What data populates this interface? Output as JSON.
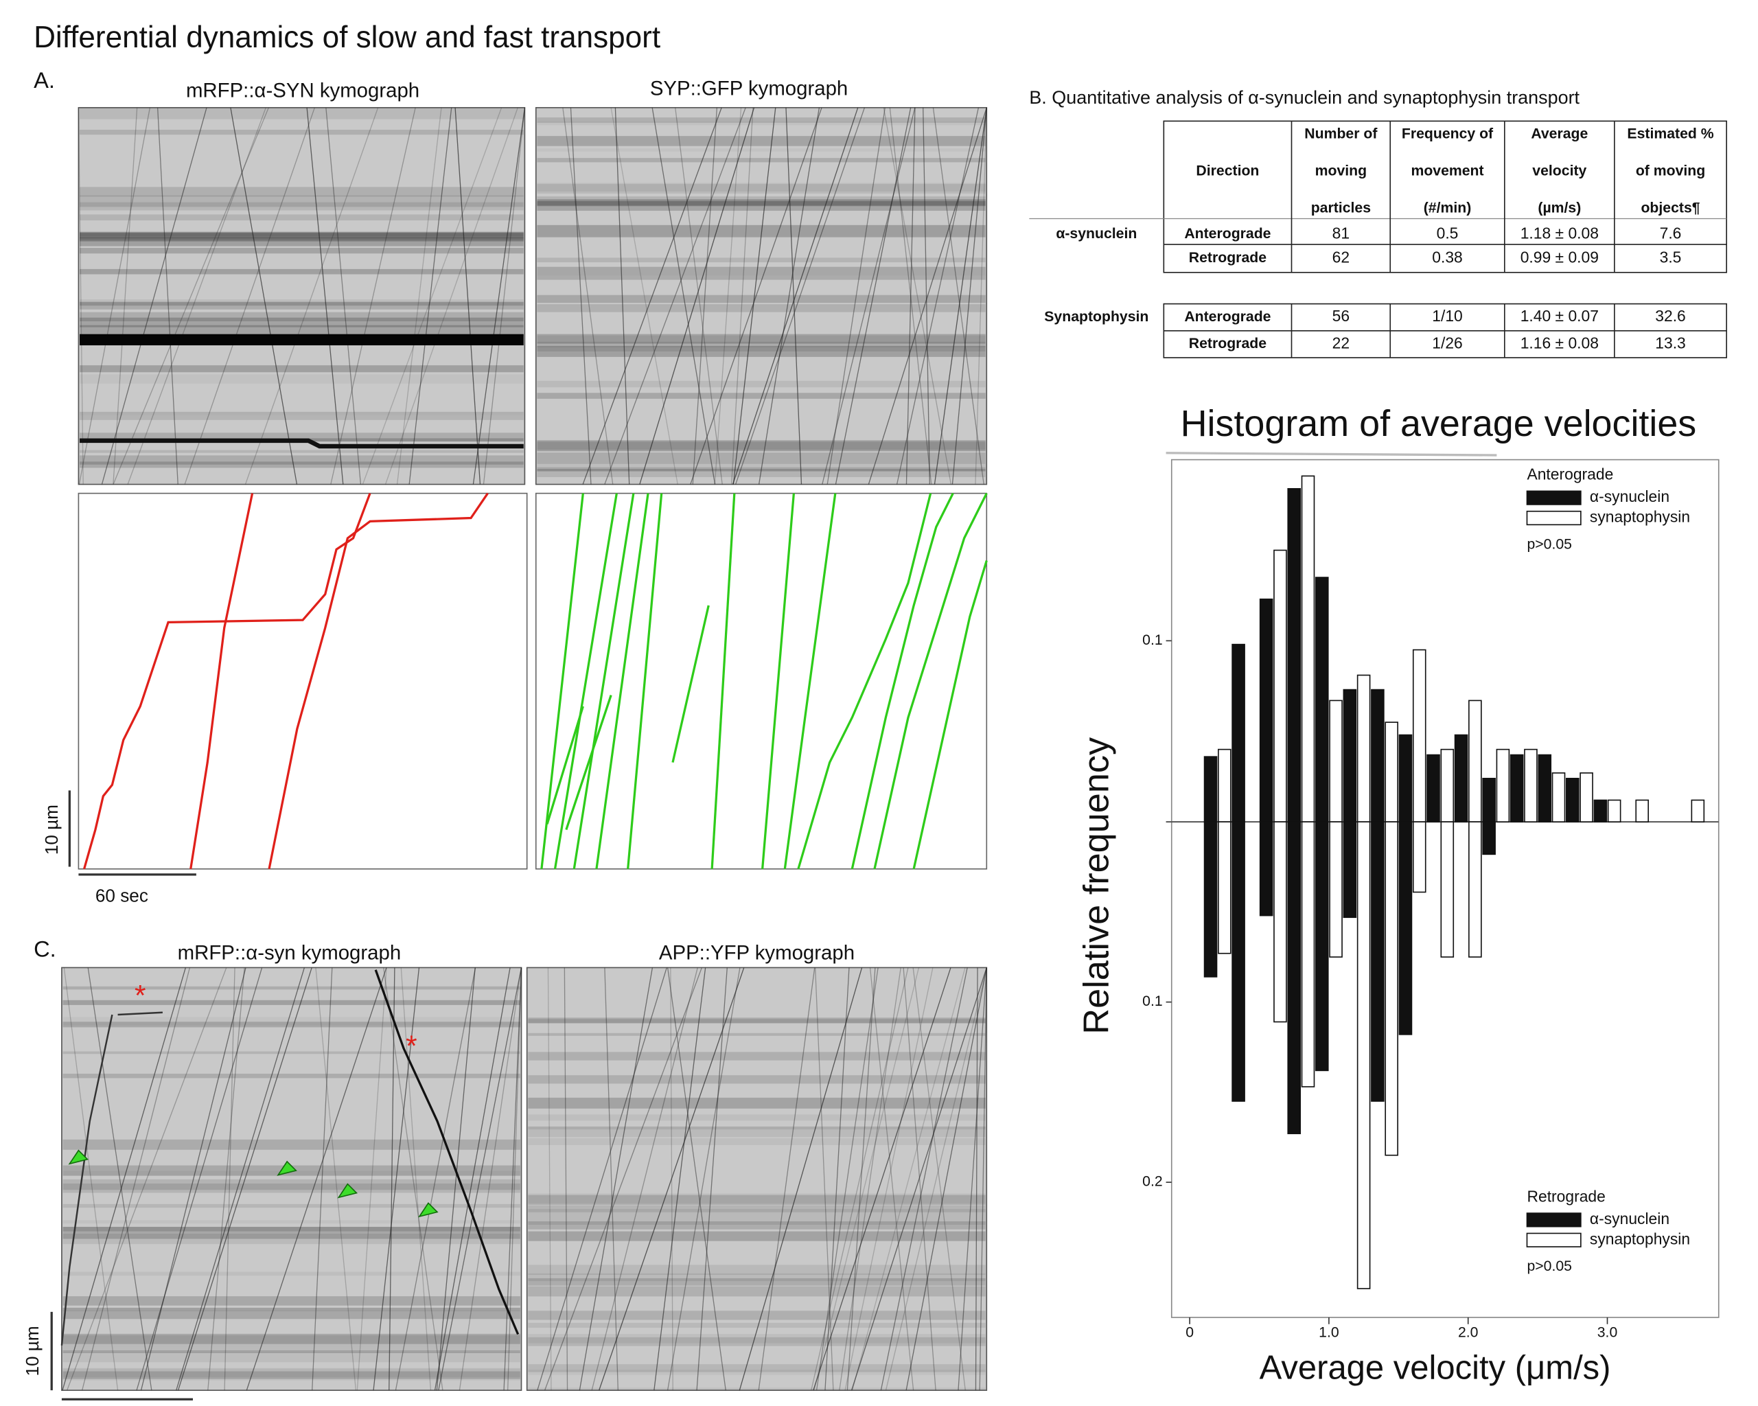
{
  "title": "Differential dynamics of slow and fast transport",
  "panel_a": {
    "label": "A.",
    "left_title": "mRFP::α-SYN kymograph",
    "right_title": "SYP::GFP kymograph",
    "scale_y": "10 µm",
    "scale_x": "60 sec"
  },
  "panel_b": {
    "label": "B. Quantitative analysis of α-synuclein and synaptophysin transport",
    "table": {
      "header": [
        [
          "Direction"
        ],
        [
          "Number of",
          "moving",
          "particles"
        ],
        [
          "Frequency of",
          "movement",
          "(#/min)"
        ],
        [
          "Average",
          "velocity",
          "(µm/s)"
        ],
        [
          "Estimated %",
          "of moving",
          "objects¶"
        ]
      ],
      "groups": [
        {
          "protein": "α-synuclein",
          "rows": [
            [
              "Anterograde",
              "81",
              "0.5",
              "1.18 ± 0.08",
              "7.6"
            ],
            [
              "Retrograde",
              "62",
              "0.38",
              "0.99 ± 0.09",
              "3.5"
            ]
          ]
        },
        {
          "protein": "Synaptophysin",
          "rows": [
            [
              "Anterograde",
              "56",
              "1/10",
              "1.40 ± 0.07",
              "32.6"
            ],
            [
              "Retrograde",
              "22",
              "1/26",
              "1.16 ± 0.08",
              "13.3"
            ]
          ]
        }
      ]
    }
  },
  "panel_c": {
    "label": "C.",
    "left_title": "mRFP::α-syn kymograph",
    "right_title": "APP::YFP kymograph",
    "scale_y": "10 µm"
  },
  "chart_data": {
    "type": "mirrored_bar",
    "title": "Histogram of average velocities",
    "x_label": "Average velocity (μm/s)",
    "y_label": "Relative frequency",
    "categories": [
      0.2,
      0.4,
      0.6,
      0.8,
      1.0,
      1.2,
      1.4,
      1.6,
      1.8,
      2.0,
      2.2,
      2.4,
      2.6,
      2.8,
      3.0,
      3.2,
      3.4,
      3.6
    ],
    "xlim": [
      -0.13,
      3.8
    ],
    "xticks": [
      0,
      {
        "value": 1,
        "label": "1.0"
      },
      {
        "value": 2,
        "label": "2.0"
      },
      {
        "value": 3,
        "label": "3.0"
      }
    ],
    "panels": [
      {
        "name": "Anterograde",
        "direction": "up",
        "note": "p>0.05",
        "ylim": [
          0,
          0.2
        ],
        "yticks": [
          0.1
        ],
        "series": [
          {
            "name": "α-synuclein",
            "color": "#111111",
            "values": [
              0.036,
              0.098,
              0.123,
              0.184,
              0.135,
              0.073,
              0.073,
              0.048,
              0.037,
              0.048,
              0.024,
              0.037,
              0.037,
              0.024,
              0.012,
              0,
              0,
              0
            ]
          },
          {
            "name": "synaptophysin",
            "color": "#ffffff",
            "values": [
              0.04,
              0,
              0.15,
              0.191,
              0.067,
              0.081,
              0.055,
              0.095,
              0.04,
              0.067,
              0.04,
              0.04,
              0.027,
              0.027,
              0.012,
              0.012,
              0,
              0.012
            ]
          }
        ]
      },
      {
        "name": "Retrograde",
        "direction": "down",
        "note": "p>0.05",
        "ylim": [
          0,
          0.275
        ],
        "yticks": [
          0.1,
          0.2
        ],
        "series": [
          {
            "name": "α-synuclein",
            "color": "#111111",
            "values": [
              0.086,
              0.155,
              0.052,
              0.173,
              0.138,
              0.053,
              0.155,
              0.118,
              0,
              0,
              0.018,
              0,
              0,
              0,
              0,
              0,
              0,
              0
            ]
          },
          {
            "name": "synaptophysin",
            "color": "#ffffff",
            "values": [
              0.073,
              0,
              0.111,
              0.147,
              0.075,
              0.259,
              0.185,
              0.039,
              0.075,
              0.075,
              0,
              0,
              0,
              0,
              0,
              0,
              0,
              0
            ]
          }
        ]
      }
    ]
  }
}
